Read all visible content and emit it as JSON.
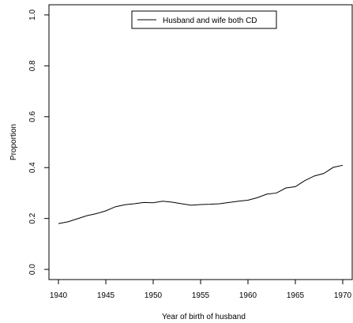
{
  "chart_data": {
    "type": "line",
    "xlabel": "Year of birth of husband",
    "ylabel": "Proportion",
    "xlim": [
      1939,
      1971
    ],
    "ylim": [
      -0.04,
      1.04
    ],
    "x_ticks": [
      1940,
      1945,
      1950,
      1955,
      1960,
      1965,
      1970
    ],
    "y_ticks": [
      0.0,
      0.2,
      0.4,
      0.6,
      0.8,
      1.0
    ],
    "y_tick_labels": [
      "0.0",
      "0.2",
      "0.4",
      "0.6",
      "0.8",
      "1.0"
    ],
    "legend_position": "top-center",
    "grid": false,
    "series": [
      {
        "name": "Husband and wife both CD",
        "color": "#000000",
        "x": [
          1940,
          1941,
          1942,
          1943,
          1944,
          1945,
          1946,
          1947,
          1948,
          1949,
          1950,
          1951,
          1952,
          1953,
          1954,
          1955,
          1956,
          1957,
          1958,
          1959,
          1960,
          1961,
          1962,
          1963,
          1964,
          1965,
          1966,
          1967,
          1968,
          1969,
          1970
        ],
        "y": [
          0.18,
          0.187,
          0.199,
          0.211,
          0.219,
          0.23,
          0.246,
          0.254,
          0.258,
          0.263,
          0.262,
          0.268,
          0.264,
          0.258,
          0.252,
          0.255,
          0.256,
          0.258,
          0.263,
          0.268,
          0.272,
          0.282,
          0.296,
          0.3,
          0.32,
          0.325,
          0.349,
          0.367,
          0.377,
          0.401,
          0.409
        ]
      }
    ]
  }
}
